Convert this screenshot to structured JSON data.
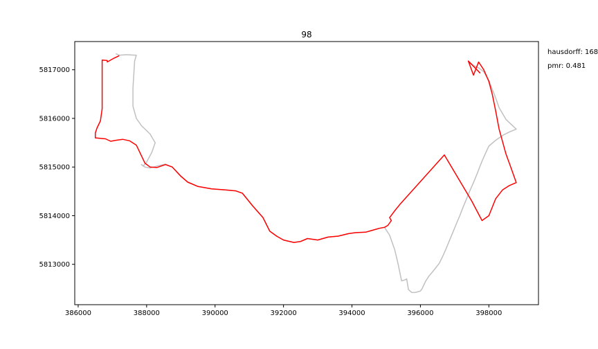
{
  "chart_data": {
    "type": "line",
    "title": "98",
    "xlabel": "",
    "ylabel": "",
    "xlim": [
      385900,
      399450
    ],
    "ylim": [
      5812170,
      5817580
    ],
    "grid": false,
    "x_ticks": [
      386000,
      388000,
      390000,
      392000,
      394000,
      396000,
      398000
    ],
    "x_tick_labels": [
      "386000",
      "388000",
      "390000",
      "392000",
      "394000",
      "396000",
      "398000"
    ],
    "y_ticks": [
      5813000,
      5814000,
      5815000,
      5816000,
      5817000
    ],
    "y_tick_labels": [
      "5813000",
      "5814000",
      "5815000",
      "5816000",
      "5817000"
    ],
    "annotations": [
      "hausdorff: 168",
      "pmr: 0.481"
    ],
    "series": [
      {
        "color": "#c0c0c0",
        "x": [
          387100,
          387200,
          387400,
          387700,
          387650,
          387600,
          387600,
          387700,
          387850,
          388100,
          388250,
          388150,
          388000,
          387900,
          387850,
          387950,
          388100,
          388300,
          388550,
          388750,
          389000,
          389200,
          389500,
          389900,
          390300,
          390600,
          390800,
          391100,
          391400,
          391600,
          391800,
          392000,
          392300,
          392500,
          392700,
          392900,
          393000,
          393300,
          393600,
          393900,
          394100,
          394400,
          394600,
          394800,
          394950,
          395100,
          395250,
          395350,
          395450,
          395550,
          395600,
          395650,
          395750,
          395850,
          396000,
          396050,
          396150,
          396250,
          396350,
          396450,
          396550,
          396650,
          396750,
          396850,
          396950,
          397050,
          397150,
          397250,
          397350,
          397450,
          397550,
          397650,
          397750,
          397800,
          397900,
          398000,
          398200,
          398400,
          398600,
          398800,
          398650,
          398500,
          398300,
          398200,
          398100,
          398000,
          397850,
          397700,
          397550,
          397400,
          397750
        ],
        "y": [
          5817330,
          5817300,
          5817310,
          5817300,
          5817180,
          5816620,
          5816250,
          5816000,
          5815850,
          5815680,
          5815500,
          5815300,
          5815100,
          5815020,
          5815050,
          5815000,
          5814980,
          5815020,
          5815060,
          5815000,
          5814820,
          5814690,
          5814600,
          5814550,
          5814530,
          5814510,
          5814460,
          5814200,
          5813960,
          5813680,
          5813580,
          5813500,
          5813450,
          5813470,
          5813530,
          5813510,
          5813500,
          5813560,
          5813580,
          5813630,
          5813650,
          5813660,
          5813700,
          5813740,
          5813760,
          5813600,
          5813300,
          5813000,
          5812660,
          5812680,
          5812700,
          5812480,
          5812420,
          5812420,
          5812450,
          5812500,
          5812650,
          5812760,
          5812840,
          5812930,
          5813020,
          5813160,
          5813320,
          5813490,
          5813660,
          5813830,
          5814000,
          5814180,
          5814350,
          5814520,
          5814680,
          5814850,
          5815030,
          5815120,
          5815280,
          5815430,
          5815550,
          5815650,
          5815720,
          5815780,
          5815880,
          5815980,
          5816220,
          5816420,
          5816600,
          5816780,
          5816960,
          5817040,
          5817090,
          5817180,
          5816930
        ]
      },
      {
        "color": "#ff0000",
        "x": [
          387200,
          387050,
          386900,
          386850,
          386850,
          386700,
          386700,
          386700,
          386650,
          386550,
          386500,
          386500,
          386500,
          386800,
          386950,
          387100,
          387300,
          387500,
          387700,
          387850,
          387950,
          388100,
          388300,
          388550,
          388750,
          389000,
          389200,
          389500,
          389900,
          390300,
          390600,
          390800,
          391100,
          391400,
          391600,
          391800,
          392000,
          392300,
          392500,
          392700,
          392900,
          393000,
          393300,
          393600,
          393900,
          394100,
          394400,
          394600,
          394800,
          394950,
          395050,
          395150,
          395100,
          395250,
          395400,
          396700,
          397500,
          397800,
          398000,
          398200,
          398400,
          398600,
          398800,
          398650,
          398500,
          398300,
          398200,
          398100,
          398000,
          397850,
          397700,
          397550,
          397400,
          397750
        ],
        "y": [
          5817290,
          5817240,
          5817180,
          5817160,
          5817190,
          5817200,
          5816700,
          5816200,
          5815950,
          5815800,
          5815700,
          5815610,
          5815600,
          5815580,
          5815530,
          5815550,
          5815570,
          5815540,
          5815450,
          5815230,
          5815080,
          5815000,
          5814990,
          5815050,
          5815000,
          5814810,
          5814690,
          5814600,
          5814550,
          5814530,
          5814510,
          5814460,
          5814200,
          5813960,
          5813680,
          5813580,
          5813500,
          5813450,
          5813470,
          5813530,
          5813510,
          5813500,
          5813560,
          5813580,
          5813630,
          5813650,
          5813660,
          5813700,
          5813740,
          5813760,
          5813800,
          5813900,
          5813960,
          5814100,
          5814230,
          5815250,
          5814300,
          5813900,
          5814000,
          5814350,
          5814530,
          5814620,
          5814680,
          5814980,
          5815270,
          5815780,
          5816150,
          5816500,
          5816760,
          5817000,
          5817160,
          5816890,
          5817180,
          5816930
        ]
      }
    ]
  }
}
